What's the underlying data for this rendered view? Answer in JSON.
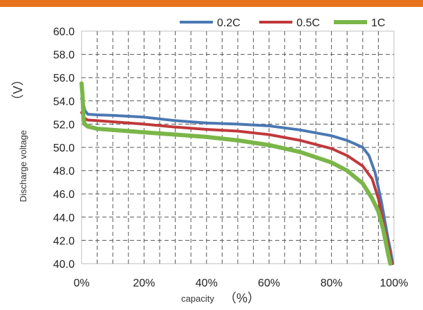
{
  "chart_data": {
    "type": "line",
    "title": "",
    "xlabel": "capacity",
    "xlabel_unit": "（%）",
    "ylabel": "Discharge voltage",
    "ylabel_unit": "（V）",
    "xlim": [
      0,
      100
    ],
    "ylim": [
      40,
      60
    ],
    "x_ticks": [
      0,
      20,
      40,
      60,
      80,
      100
    ],
    "x_tick_labels": [
      "0%",
      "20%",
      "40%",
      "60%",
      "80%",
      "100%"
    ],
    "y_ticks": [
      40,
      42,
      44,
      46,
      48,
      50,
      52,
      54,
      56,
      58,
      60
    ],
    "y_tick_labels": [
      "40.0",
      "42.0",
      "44.0",
      "46.0",
      "48.0",
      "50.0",
      "52.0",
      "54.0",
      "56.0",
      "58.0",
      "60.0"
    ],
    "grid": true,
    "grid_style": "dashed",
    "legend_position": "top-right",
    "series": [
      {
        "name": "0.2C",
        "color": "#4a78b3",
        "points": [
          [
            0,
            54.2
          ],
          [
            0.4,
            54.0
          ],
          [
            1,
            53.2
          ],
          [
            2,
            52.85
          ],
          [
            5,
            52.8
          ],
          [
            10,
            52.75
          ],
          [
            20,
            52.6
          ],
          [
            30,
            52.3
          ],
          [
            40,
            52.1
          ],
          [
            50,
            52.0
          ],
          [
            60,
            51.85
          ],
          [
            70,
            51.5
          ],
          [
            80,
            51.0
          ],
          [
            85,
            50.6
          ],
          [
            90,
            50.0
          ],
          [
            92,
            49.3
          ],
          [
            94,
            47.8
          ],
          [
            96,
            45.3
          ],
          [
            98,
            42.3
          ],
          [
            99,
            41.0
          ],
          [
            99.6,
            40.0
          ]
        ]
      },
      {
        "name": "0.5C",
        "color": "#c0393b",
        "points": [
          [
            0,
            53.0
          ],
          [
            0.4,
            52.8
          ],
          [
            1,
            52.5
          ],
          [
            2,
            52.35
          ],
          [
            5,
            52.3
          ],
          [
            10,
            52.2
          ],
          [
            20,
            52.0
          ],
          [
            30,
            51.75
          ],
          [
            40,
            51.55
          ],
          [
            50,
            51.4
          ],
          [
            60,
            51.1
          ],
          [
            70,
            50.6
          ],
          [
            80,
            49.9
          ],
          [
            85,
            49.3
          ],
          [
            90,
            48.4
          ],
          [
            93,
            47.3
          ],
          [
            95,
            45.6
          ],
          [
            97,
            43.0
          ],
          [
            98.5,
            41.2
          ],
          [
            99.3,
            40.0
          ]
        ]
      },
      {
        "name": "1C",
        "color": "#7ab648",
        "points": [
          [
            0,
            55.5
          ],
          [
            0.3,
            54.5
          ],
          [
            0.6,
            52.5
          ],
          [
            1,
            52.0
          ],
          [
            2,
            51.8
          ],
          [
            5,
            51.6
          ],
          [
            10,
            51.5
          ],
          [
            20,
            51.3
          ],
          [
            30,
            51.1
          ],
          [
            40,
            50.9
          ],
          [
            50,
            50.6
          ],
          [
            60,
            50.2
          ],
          [
            70,
            49.6
          ],
          [
            80,
            48.7
          ],
          [
            85,
            48.0
          ],
          [
            90,
            46.9
          ],
          [
            93,
            45.6
          ],
          [
            95,
            44.5
          ],
          [
            96.5,
            43.0
          ],
          [
            98,
            41.0
          ],
          [
            98.8,
            40.0
          ]
        ]
      }
    ]
  }
}
